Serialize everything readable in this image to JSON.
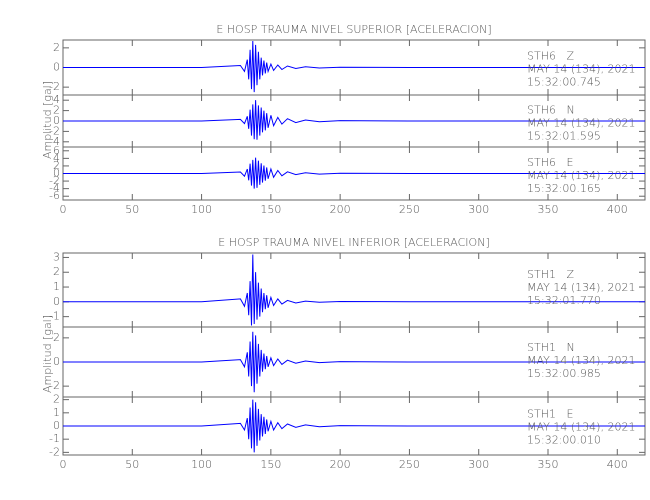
{
  "chart_data": [
    {
      "type": "line",
      "title": "E HOSP TRAUMA NIVEL SUPERIOR [ACELERACION]",
      "ylabel": "Amplitud [gal]",
      "color": "#0000ff",
      "xlim": [
        0,
        420
      ],
      "xticks": [
        0,
        50,
        100,
        150,
        200,
        250,
        300,
        350,
        400
      ],
      "x": [
        0,
        50,
        100,
        128,
        131,
        133,
        134,
        135,
        136,
        137,
        138,
        139,
        140,
        141,
        142,
        143,
        144,
        145,
        146,
        147,
        148,
        150,
        152,
        155,
        158,
        162,
        168,
        175,
        185,
        200,
        250,
        300,
        350,
        420
      ],
      "panels": [
        {
          "ylim": [
            -2.8,
            2.8
          ],
          "yticks": [
            2,
            0,
            -2
          ],
          "annotation": [
            "STH6   Z",
            "MAY 14 (134), 2021",
            "15:32:00.745"
          ],
          "values": [
            0,
            0,
            0,
            0.2,
            -0.4,
            0.8,
            -1.2,
            1.8,
            -2.2,
            2.7,
            -2.5,
            2.3,
            -1.8,
            1.6,
            -1.2,
            1.0,
            -0.8,
            0.7,
            -0.6,
            0.5,
            -0.4,
            0.35,
            -0.3,
            0.25,
            -0.2,
            0.15,
            -0.1,
            0.08,
            -0.05,
            0.03,
            0,
            0,
            0,
            0
          ]
        },
        {
          "ylim": [
            -5,
            5
          ],
          "yticks": [
            4,
            2,
            0,
            -2,
            -4
          ],
          "annotation": [
            "STH6   N",
            "MAY 14 (134), 2021",
            "15:32:01.595"
          ],
          "values": [
            0,
            0,
            0,
            0.3,
            -0.5,
            0.9,
            -1.5,
            2.2,
            -2.8,
            3.2,
            -3.5,
            4.0,
            -3.6,
            3.0,
            -2.8,
            2.6,
            -2.2,
            2.0,
            -1.8,
            1.5,
            -1.3,
            1.1,
            -0.9,
            0.7,
            -0.6,
            0.45,
            -0.3,
            0.2,
            -0.15,
            0.08,
            0,
            0,
            0,
            0
          ]
        },
        {
          "ylim": [
            -7,
            7
          ],
          "yticks": [
            6,
            4,
            2,
            0,
            -2,
            -4,
            -6
          ],
          "annotation": [
            "STH6   E",
            "MAY 14 (134), 2021",
            "15:32:00.165"
          ],
          "values": [
            0,
            0,
            0,
            0.4,
            -0.7,
            1.2,
            -1.8,
            2.6,
            -3.2,
            3.6,
            -4.0,
            4.2,
            -3.8,
            3.4,
            -3.0,
            2.7,
            -2.4,
            2.1,
            -1.9,
            1.6,
            -1.4,
            1.2,
            -1.0,
            0.8,
            -0.6,
            0.45,
            -0.3,
            0.2,
            -0.15,
            0.08,
            0,
            0,
            0,
            0
          ]
        }
      ]
    },
    {
      "type": "line",
      "title": "E HOSP TRAUMA NIVEL INFERIOR [ACELERACION]",
      "ylabel": "Amplitud [gal]",
      "color": "#0000ff",
      "xlim": [
        0,
        420
      ],
      "xticks": [
        0,
        50,
        100,
        150,
        200,
        250,
        300,
        350,
        400
      ],
      "x": [
        0,
        50,
        100,
        128,
        131,
        133,
        134,
        135,
        136,
        137,
        138,
        139,
        140,
        141,
        142,
        143,
        144,
        145,
        146,
        147,
        148,
        150,
        152,
        155,
        158,
        162,
        168,
        175,
        185,
        200,
        250,
        300,
        350,
        420
      ],
      "panels": [
        {
          "ylim": [
            -1.7,
            3.3
          ],
          "yticks": [
            3,
            2,
            1,
            0,
            -1
          ],
          "annotation": [
            "STH1   Z",
            "MAY 14 (134), 2021",
            "15:32:01.770"
          ],
          "values": [
            0,
            0,
            0,
            0.2,
            -0.3,
            0.6,
            -0.9,
            1.4,
            -1.6,
            3.2,
            -1.5,
            2.0,
            -1.2,
            1.3,
            -1.0,
            0.9,
            -0.7,
            0.6,
            -0.5,
            0.45,
            -0.4,
            0.3,
            -0.25,
            0.2,
            -0.15,
            0.1,
            -0.08,
            0.05,
            -0.03,
            0.02,
            0,
            0,
            0,
            0
          ]
        },
        {
          "ylim": [
            -2.9,
            2.9
          ],
          "yticks": [
            2,
            0,
            -2
          ],
          "annotation": [
            "STH1   N",
            "MAY 14 (134), 2021",
            "15:32:00.985"
          ],
          "values": [
            0,
            0,
            0,
            0.2,
            -0.4,
            0.8,
            -1.2,
            1.7,
            -2.0,
            2.5,
            -2.5,
            2.2,
            -1.8,
            1.5,
            -1.2,
            1.0,
            -0.8,
            0.7,
            -0.6,
            0.5,
            -0.4,
            0.35,
            -0.3,
            0.25,
            -0.2,
            0.15,
            -0.1,
            0.08,
            -0.05,
            0.03,
            0,
            0,
            0,
            0
          ]
        },
        {
          "ylim": [
            -2.2,
            2.2
          ],
          "yticks": [
            2,
            1,
            0,
            -1,
            -2
          ],
          "annotation": [
            "STH1   E",
            "MAY 14 (134), 2021",
            "15:32:00.010"
          ],
          "values": [
            0,
            0,
            0,
            0.2,
            -0.3,
            0.6,
            -1.0,
            1.4,
            -1.7,
            2.0,
            -2.0,
            1.8,
            -1.5,
            1.3,
            -1.1,
            0.9,
            -0.8,
            0.7,
            -0.6,
            0.5,
            -0.4,
            0.35,
            -0.3,
            0.25,
            -0.2,
            0.15,
            -0.1,
            0.08,
            -0.05,
            0.03,
            0,
            0,
            0,
            0
          ]
        }
      ]
    }
  ]
}
